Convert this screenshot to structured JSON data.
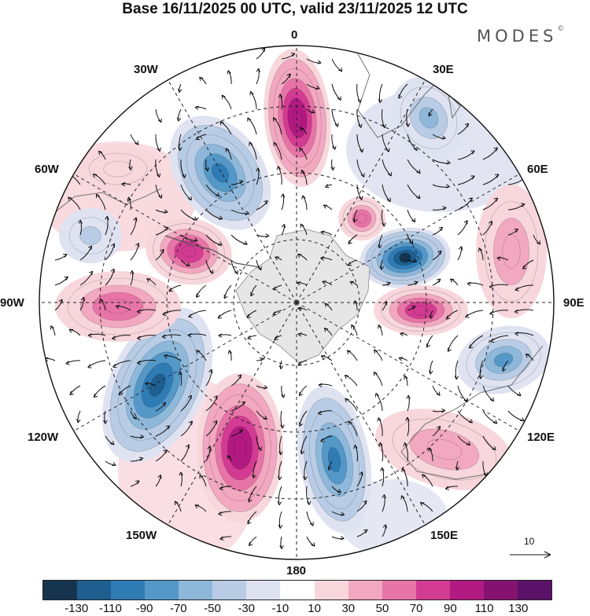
{
  "title": "Base 16/11/2025 00 UTC, valid 23/11/2025 12 UTC",
  "brand": "MODES",
  "brand_mark": "©",
  "longitude_labels": [
    "0",
    "30E",
    "60E",
    "90E",
    "120E",
    "150E",
    "180",
    "150W",
    "120W",
    "90W",
    "60W",
    "30W"
  ],
  "vector_scale_label": "10",
  "colorbar": {
    "colors": [
      "#17344f",
      "#1e5f8f",
      "#2f7cb5",
      "#5498c8",
      "#8eb8da",
      "#b8cce6",
      "#dfe2f0",
      "#ffffff",
      "#f7d6dc",
      "#f2a8c0",
      "#e774a6",
      "#d33b92",
      "#b21a82",
      "#861270",
      "#5a1268"
    ],
    "tick_labels": [
      "-130",
      "-110",
      "-90",
      "-70",
      "-50",
      "-30",
      "-10",
      "10",
      "30",
      "50",
      "70",
      "90",
      "110",
      "130"
    ]
  },
  "anomaly_cells": [
    {
      "name": "pos-greenwich",
      "sign": "positive",
      "strength": 110
    },
    {
      "name": "neg-south-atlantic",
      "sign": "negative",
      "strength": -90
    },
    {
      "name": "neg-east-africa",
      "sign": "negative",
      "strength": -50
    },
    {
      "name": "pos-indian-small",
      "sign": "positive",
      "strength": 70
    },
    {
      "name": "pos-indian-east",
      "sign": "positive",
      "strength": 50
    },
    {
      "name": "neg-indian-deep",
      "sign": "negative",
      "strength": -130
    },
    {
      "name": "pos-90e",
      "sign": "positive",
      "strength": 90
    },
    {
      "name": "neg-australia-sw",
      "sign": "negative",
      "strength": -70
    },
    {
      "name": "pos-south-australia",
      "sign": "positive",
      "strength": 50
    },
    {
      "name": "neg-160e",
      "sign": "negative",
      "strength": -90
    },
    {
      "name": "pos-160w",
      "sign": "positive",
      "strength": 110
    },
    {
      "name": "neg-120w",
      "sign": "negative",
      "strength": -110
    },
    {
      "name": "pos-90w",
      "sign": "positive",
      "strength": 70
    },
    {
      "name": "pos-peninsula",
      "sign": "positive",
      "strength": 90
    },
    {
      "name": "neg-70w",
      "sign": "negative",
      "strength": -30
    },
    {
      "name": "pos-south-america",
      "sign": "positive",
      "strength": 30
    }
  ]
}
